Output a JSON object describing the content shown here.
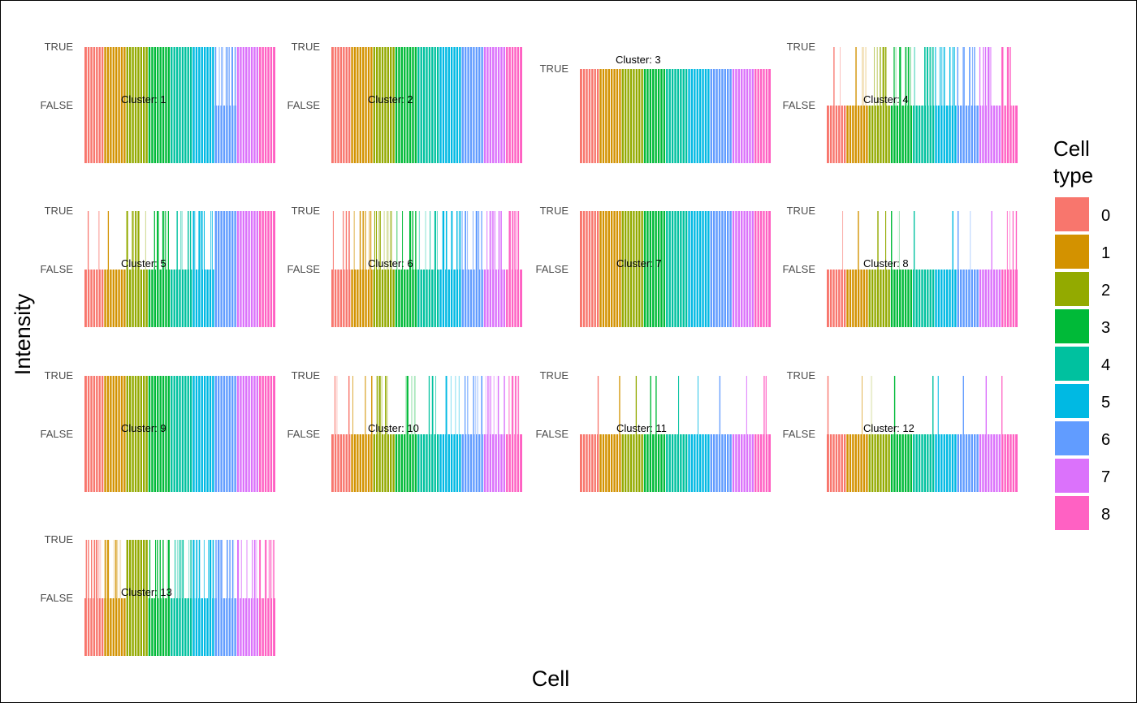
{
  "chart_data": {
    "type": "bar",
    "xlabel": "Cell",
    "ylabel": "Intensity",
    "y_categories": [
      "FALSE",
      "TRUE"
    ],
    "legend": {
      "title_lines": [
        "Cell",
        "type"
      ],
      "position": "right",
      "entries": [
        {
          "label": "0",
          "color": "#F8766D"
        },
        {
          "label": "1",
          "color": "#D39200"
        },
        {
          "label": "2",
          "color": "#93AA00"
        },
        {
          "label": "3",
          "color": "#00BA38"
        },
        {
          "label": "4",
          "color": "#00C19F"
        },
        {
          "label": "5",
          "color": "#00B9E3"
        },
        {
          "label": "6",
          "color": "#619CFF"
        },
        {
          "label": "7",
          "color": "#DB72FB"
        },
        {
          "label": "8",
          "color": "#FF61C3"
        }
      ]
    },
    "cell_type_group_sizes": [
      7,
      8,
      8,
      8,
      8,
      8,
      8,
      8,
      6
    ],
    "panels": [
      {
        "label": "Cluster: 1",
        "density": [
          0.95,
          0.96,
          0.96,
          0.97,
          0.92,
          0.9,
          0.85,
          0.9,
          0.9
        ],
        "base": "FALSE"
      },
      {
        "label": "Cluster: 2",
        "density": [
          0.97,
          0.97,
          0.97,
          0.97,
          0.95,
          0.95,
          0.95,
          0.95,
          0.95
        ],
        "base": "FALSE"
      },
      {
        "label": "Cluster: 3",
        "density": [
          1,
          1,
          1,
          1,
          1,
          1,
          1,
          1,
          1
        ],
        "base": "TRUE"
      },
      {
        "label": "Cluster: 4",
        "density": [
          0.15,
          0.3,
          0.6,
          0.55,
          0.55,
          0.8,
          0.65,
          0.6,
          0.55
        ],
        "base": "FALSE"
      },
      {
        "label": "Cluster: 5",
        "density": [
          0.12,
          0.1,
          0.85,
          0.7,
          0.4,
          0.85,
          0.9,
          0.95,
          0.9
        ],
        "base": "FALSE"
      },
      {
        "label": "Cluster: 6",
        "density": [
          0.4,
          0.4,
          0.7,
          0.6,
          0.55,
          0.85,
          0.8,
          0.85,
          0.8
        ],
        "base": "FALSE"
      },
      {
        "label": "Cluster: 7",
        "density": [
          0.9,
          0.92,
          0.92,
          0.95,
          0.9,
          0.95,
          0.9,
          0.9,
          0.9
        ],
        "base": "FALSE"
      },
      {
        "label": "Cluster: 8",
        "density": [
          0.05,
          0.05,
          0.15,
          0.15,
          0.1,
          0.05,
          0.15,
          0.1,
          0.25
        ],
        "base": "FALSE"
      },
      {
        "label": "Cluster: 9",
        "density": [
          0.97,
          0.97,
          0.97,
          0.97,
          0.97,
          0.97,
          0.95,
          0.92,
          0.9
        ],
        "base": "FALSE"
      },
      {
        "label": "Cluster: 10",
        "density": [
          0.2,
          0.25,
          0.6,
          0.4,
          0.3,
          0.4,
          0.6,
          0.7,
          0.6
        ],
        "base": "FALSE"
      },
      {
        "label": "Cluster: 11",
        "density": [
          0.05,
          0.05,
          0.05,
          0.15,
          0.05,
          0.05,
          0.05,
          0.1,
          0.15
        ],
        "base": "FALSE"
      },
      {
        "label": "Cluster: 12",
        "density": [
          0.05,
          0.05,
          0.1,
          0.05,
          0.05,
          0.1,
          0.1,
          0.05,
          0.1
        ],
        "base": "FALSE"
      },
      {
        "label": "Cluster: 13",
        "density": [
          0.85,
          0.8,
          0.9,
          0.7,
          0.7,
          0.85,
          0.8,
          0.7,
          0.85
        ],
        "base": "FALSE"
      }
    ]
  }
}
